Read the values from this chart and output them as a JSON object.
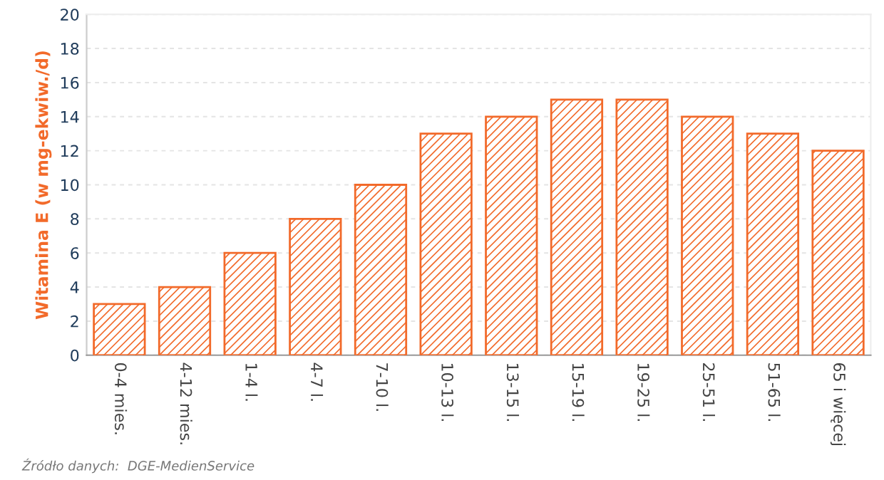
{
  "chart_data": {
    "type": "bar",
    "ylabel": "Witamina E (w mg-ekwiw./d)",
    "categories": [
      "0-4 mies.",
      "4-12 mies.",
      "1-4 l.",
      "4-7 l.",
      "7-10 l.",
      "10-13 l.",
      "13-15 l.",
      "15-19 l.",
      "19-25 l.",
      "25-51 l.",
      "51-65 l.",
      "65 i więcej"
    ],
    "values": [
      3,
      4,
      6,
      8,
      10,
      13,
      14,
      15,
      15,
      14,
      13,
      12
    ],
    "color": "#f26a2a",
    "ylim": [
      0,
      20
    ],
    "yticks": [
      0,
      2,
      4,
      6,
      8,
      10,
      12,
      14,
      16,
      18,
      20
    ],
    "grid": "y",
    "annotations": [
      "Źródło danych:  DGE-MedienService"
    ]
  }
}
